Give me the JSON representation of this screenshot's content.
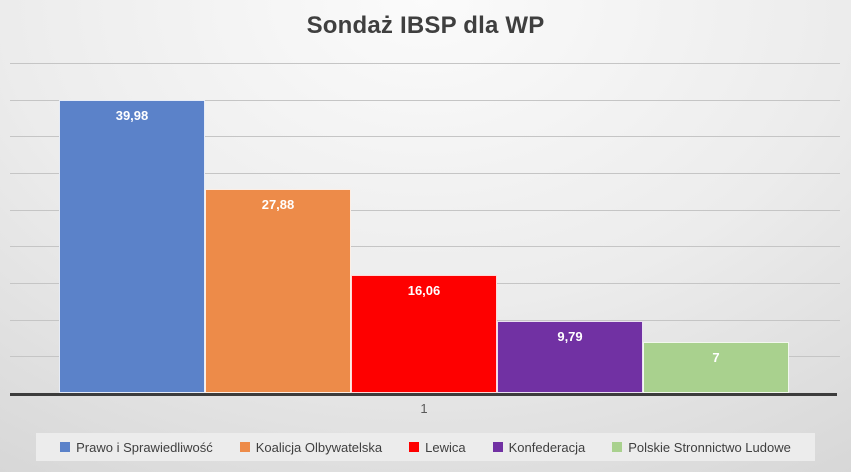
{
  "chart_data": {
    "type": "bar",
    "title": "Sondaż IBSP dla WP",
    "categories": [
      "1"
    ],
    "series": [
      {
        "name": "Prawo i Sprawiedliwość",
        "value": 39.98,
        "label": "39,98",
        "color": "#5b82c9"
      },
      {
        "name": "Koalicja Olbywatelska",
        "value": 27.88,
        "label": "27,88",
        "color": "#ed8b49"
      },
      {
        "name": "Lewica",
        "value": 16.06,
        "label": "16,06",
        "color": "#fe0000"
      },
      {
        "name": "Konfederacja",
        "value": 9.79,
        "label": "9,79",
        "color": "#7131a3"
      },
      {
        "name": "Polskie Stronnictwo Ludowe",
        "value": 7,
        "label": "7",
        "color": "#a9d18e"
      }
    ],
    "xlabel": "",
    "ylabel": "",
    "ylim": [
      0,
      45
    ],
    "gridline_step": 5,
    "grid": "horizontal",
    "legend_position": "bottom",
    "value_label_position": "inside-end",
    "value_label_color": "#ffffff",
    "axis_line_color": "#3c3c3c",
    "gridline_color": "#c5c5c5",
    "title_color": "#3f3f3f"
  }
}
